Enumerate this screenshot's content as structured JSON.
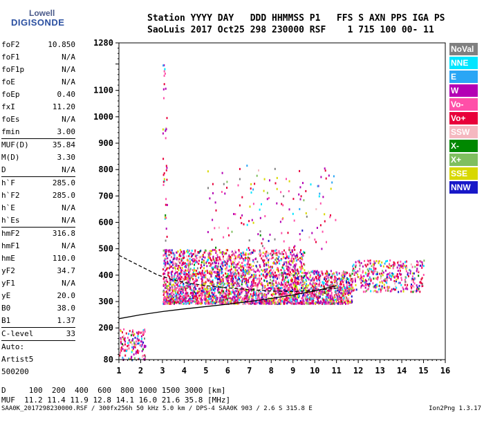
{
  "logo": {
    "line1": "Lowell",
    "line2": "DIGISONDE"
  },
  "header": {
    "labels": "Station YYYY DAY   DDD HHMMSS P1   FFS S AXN PPS IGA PS",
    "values": "SaoLuis 2017 Oct25 298 230000 RSF    1 715 100 00- 11"
  },
  "params": [
    {
      "k": "foF2",
      "v": "10.850"
    },
    {
      "k": "foF1",
      "v": "N/A"
    },
    {
      "k": "foF1p",
      "v": "N/A"
    },
    {
      "k": "foE",
      "v": "N/A"
    },
    {
      "k": "foEp",
      "v": "0.40"
    },
    {
      "k": "fxI",
      "v": "11.20"
    },
    {
      "k": "foEs",
      "v": "N/A"
    },
    {
      "k": "fmin",
      "v": "3.00"
    },
    {
      "sep": true
    },
    {
      "k": "MUF(D)",
      "v": "35.84"
    },
    {
      "k": "M(D)",
      "v": "3.30"
    },
    {
      "k": "D",
      "v": "N/A"
    },
    {
      "sep": true
    },
    {
      "k": "h`F",
      "v": "285.0"
    },
    {
      "k": "h`F2",
      "v": "285.0"
    },
    {
      "k": "h`E",
      "v": "N/A"
    },
    {
      "k": "h`Es",
      "v": "N/A"
    },
    {
      "sep": true
    },
    {
      "k": "hmF2",
      "v": "316.8"
    },
    {
      "k": "hmF1",
      "v": "N/A"
    },
    {
      "k": "hmE",
      "v": "110.0"
    },
    {
      "k": "yF2",
      "v": "34.7"
    },
    {
      "k": "yF1",
      "v": "N/A"
    },
    {
      "k": "yE",
      "v": "20.0"
    },
    {
      "k": "B0",
      "v": "38.0"
    },
    {
      "k": "B1",
      "v": "1.37"
    },
    {
      "sep": true
    },
    {
      "k": "C-level",
      "v": "33"
    },
    {
      "sep": true
    },
    {
      "k": "Auto:",
      "v": ""
    },
    {
      "k": "Artist5",
      "v": ""
    },
    {
      "k": "500200",
      "v": ""
    }
  ],
  "legend": [
    {
      "label": "NoVal",
      "color": "#808080"
    },
    {
      "label": "NNE",
      "color": "#00e5ff"
    },
    {
      "label": "E",
      "color": "#2aa6f5"
    },
    {
      "label": "W",
      "color": "#b400b4"
    },
    {
      "label": "Vo-",
      "color": "#ff4fa8"
    },
    {
      "label": "Vo+",
      "color": "#e8003a"
    },
    {
      "label": "SSW",
      "color": "#f5b8c0"
    },
    {
      "label": "X-",
      "color": "#008800"
    },
    {
      "label": "X+",
      "color": "#7fbf5f"
    },
    {
      "label": "SSE",
      "color": "#d8d800"
    },
    {
      "label": "NNW",
      "color": "#1818c8"
    }
  ],
  "bottom": {
    "line1": "D     100  200  400  600  800 1000 1500 3000 [km]",
    "line2": "MUF  11.2 11.4 11.9 12.8 14.1 16.0 21.6 35.8 [MHz]"
  },
  "footer": {
    "left": "SAA0K_2017298230000.RSF / 300fx256h 50 kHz 5.0 km / DPS-4 SAA0K 903 / 2.6 S 315.8 E",
    "right": "Ion2Png 1.3.17"
  },
  "chart_data": {
    "type": "scatter",
    "xlim": [
      1,
      16
    ],
    "ylim": [
      80,
      1280
    ],
    "x_ticks": [
      1,
      2,
      3,
      4,
      5,
      6,
      7,
      8,
      9,
      10,
      11,
      12,
      13,
      14,
      15,
      16
    ],
    "y_ticks": [
      80,
      200,
      300,
      400,
      500,
      600,
      700,
      800,
      900,
      1000,
      1100,
      1200,
      1280
    ],
    "y_tick_labels": [
      "80",
      "200",
      "300",
      "400",
      "500",
      "600",
      "700",
      "800",
      "900",
      "1000",
      "1100",
      "1280"
    ],
    "grid": false,
    "traces": [
      {
        "style": "solid",
        "x": [
          1.0,
          2.0,
          3.0,
          4.0,
          5.0,
          6.0,
          7.0,
          8.0,
          9.0,
          10.0,
          11.0
        ],
        "y": [
          235,
          250,
          262,
          272,
          281,
          290,
          300,
          312,
          325,
          340,
          360
        ]
      },
      {
        "style": "dashed",
        "x": [
          1.0,
          1.6,
          2.2,
          2.8,
          3.4,
          4.0,
          5.0,
          6.0,
          7.0,
          8.0,
          9.0,
          10.0,
          11.0
        ],
        "y": [
          475,
          450,
          425,
          400,
          385,
          372,
          360,
          352,
          345,
          340,
          338,
          342,
          350
        ]
      }
    ],
    "echo_regions": [
      {
        "x0": 3.0,
        "x1": 11.7,
        "y0": 295,
        "y1": 420,
        "density": "high"
      },
      {
        "x0": 3.0,
        "x1": 9.5,
        "y0": 420,
        "y1": 500,
        "density": "medium"
      },
      {
        "x0": 11.7,
        "x1": 15.0,
        "y0": 340,
        "y1": 460,
        "density": "low"
      },
      {
        "x0": 5.0,
        "x1": 11.0,
        "y0": 500,
        "y1": 820,
        "density": "sparse"
      },
      {
        "x0": 1.0,
        "x1": 2.2,
        "y0": 80,
        "y1": 200,
        "density": "sparse"
      }
    ]
  }
}
